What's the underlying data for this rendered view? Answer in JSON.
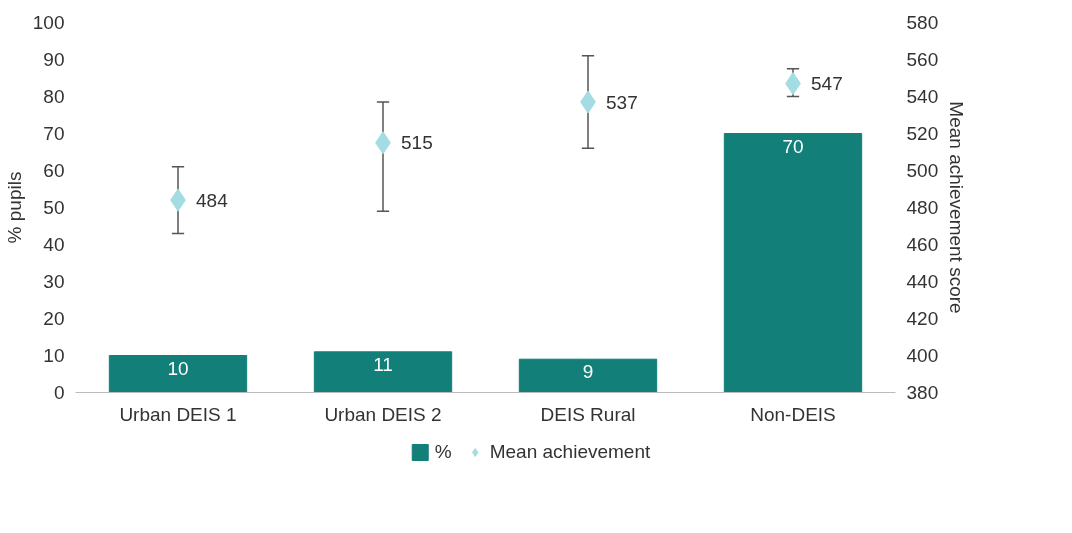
{
  "chart_data": {
    "type": "bar",
    "categories": [
      "Urban DEIS 1",
      "Urban DEIS 2",
      "DEIS Rural",
      "Non-DEIS"
    ],
    "ylabel": "% pupils",
    "y2label": "Mean achievement score",
    "ylim": [
      0,
      100
    ],
    "yticks": [
      0,
      10,
      20,
      30,
      40,
      50,
      60,
      70,
      80,
      90,
      100
    ],
    "y2lim": [
      380,
      580
    ],
    "y2ticks": [
      380,
      400,
      420,
      440,
      460,
      480,
      500,
      520,
      540,
      560,
      580
    ],
    "series": [
      {
        "name": "%",
        "color": "#127f78",
        "values": [
          10,
          11,
          9,
          70
        ]
      },
      {
        "name": "Mean achievement",
        "type": "scatter",
        "axis": "y2",
        "color": "#a3dde3",
        "values": [
          484,
          515,
          537,
          547
        ],
        "errors": [
          [
            466,
            502
          ],
          [
            478,
            537
          ],
          [
            512,
            562
          ],
          [
            540,
            555
          ]
        ]
      }
    ],
    "marker": "diamond",
    "data_labels": true,
    "legend": "bottom",
    "grid": false
  }
}
